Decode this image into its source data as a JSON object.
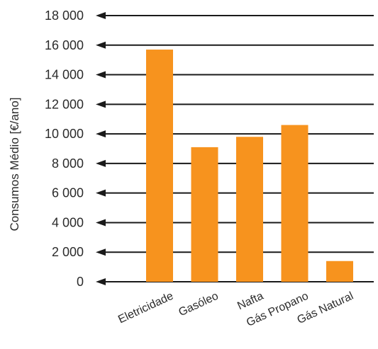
{
  "chart_data": {
    "type": "bar",
    "title": "",
    "xlabel": "",
    "ylabel": "Consumos Médio [€/ano]",
    "categories": [
      "Eletricidade",
      "Gasóleo",
      "Nafta",
      "Gás Propano",
      "Gás Natural"
    ],
    "values": [
      15700,
      9100,
      9800,
      10600,
      1400
    ],
    "ylim": [
      0,
      18000
    ],
    "yticks": [
      0,
      2000,
      4000,
      6000,
      8000,
      10000,
      12000,
      14000,
      16000,
      18000
    ],
    "ytick_labels": [
      "0",
      "2 000",
      "4 000",
      "6 000",
      "8 000",
      "10 000",
      "12 000",
      "14 000",
      "16 000",
      "18 000"
    ],
    "grid": true,
    "legend": "none",
    "colors": {
      "bar": "#F7931E",
      "grid": "#1a1a1a",
      "text": "#2b2b2b"
    }
  }
}
